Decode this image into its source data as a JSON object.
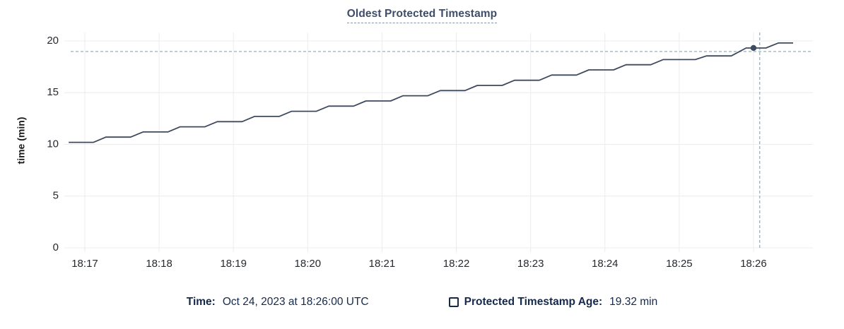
{
  "title": "Oldest Protected Timestamp",
  "tooltip": {
    "time_label": "Time:",
    "time_value": "Oct 24, 2023 at 18:26:00 UTC",
    "series_label": "Protected Timestamp Age:",
    "series_value": "19.32 min"
  },
  "colors": {
    "line": "#3d4a5f",
    "dot": "#3d4a5f",
    "grid": "#ececec",
    "crosshair": "#a2b5bf",
    "tick_text": "#26292e",
    "axis_title_text": "#1a1a1a",
    "title_text": "#3f4e68",
    "footer_text": "#15294b"
  },
  "chart_data": {
    "type": "line",
    "title": "Oldest Protected Timestamp",
    "xlabel": "",
    "ylabel": "time (min)",
    "ylim": [
      0,
      20
    ],
    "yticks": [
      0,
      5,
      10,
      15,
      20
    ],
    "xticks": [
      "18:17",
      "18:18",
      "18:19",
      "18:20",
      "18:21",
      "18:22",
      "18:23",
      "18:24",
      "18:25",
      "18:26"
    ],
    "grid": true,
    "legend_position": "bottom",
    "series": [
      {
        "name": "Protected Timestamp Age",
        "unit": "min",
        "points": [
          [
            "18:16:47",
            10.2
          ],
          [
            "18:17:07",
            10.2
          ],
          [
            "18:17:17",
            10.7
          ],
          [
            "18:17:37",
            10.7
          ],
          [
            "18:17:47",
            11.2
          ],
          [
            "18:18:07",
            11.2
          ],
          [
            "18:18:17",
            11.7
          ],
          [
            "18:18:37",
            11.7
          ],
          [
            "18:18:47",
            12.2
          ],
          [
            "18:19:07",
            12.2
          ],
          [
            "18:19:17",
            12.7
          ],
          [
            "18:19:37",
            12.7
          ],
          [
            "18:19:47",
            13.2
          ],
          [
            "18:20:07",
            13.2
          ],
          [
            "18:20:17",
            13.7
          ],
          [
            "18:20:37",
            13.7
          ],
          [
            "18:20:47",
            14.2
          ],
          [
            "18:21:07",
            14.2
          ],
          [
            "18:21:17",
            14.7
          ],
          [
            "18:21:37",
            14.7
          ],
          [
            "18:21:47",
            15.2
          ],
          [
            "18:22:07",
            15.2
          ],
          [
            "18:22:17",
            15.7
          ],
          [
            "18:22:37",
            15.7
          ],
          [
            "18:22:47",
            16.2
          ],
          [
            "18:23:07",
            16.2
          ],
          [
            "18:23:17",
            16.7
          ],
          [
            "18:23:37",
            16.7
          ],
          [
            "18:23:47",
            17.2
          ],
          [
            "18:24:07",
            17.2
          ],
          [
            "18:24:17",
            17.7
          ],
          [
            "18:24:37",
            17.7
          ],
          [
            "18:24:47",
            18.2
          ],
          [
            "18:25:13",
            18.2
          ],
          [
            "18:25:22",
            18.55
          ],
          [
            "18:25:42",
            18.55
          ],
          [
            "18:25:54",
            19.32
          ],
          [
            "18:26:10",
            19.32
          ],
          [
            "18:26:20",
            19.8
          ],
          [
            "18:26:32",
            19.8
          ]
        ]
      }
    ],
    "hover": {
      "dot_time": "18:26:00",
      "dot_value": 19.32,
      "crosshair_time": "18:26:05",
      "crosshair_value": 18.98
    }
  }
}
